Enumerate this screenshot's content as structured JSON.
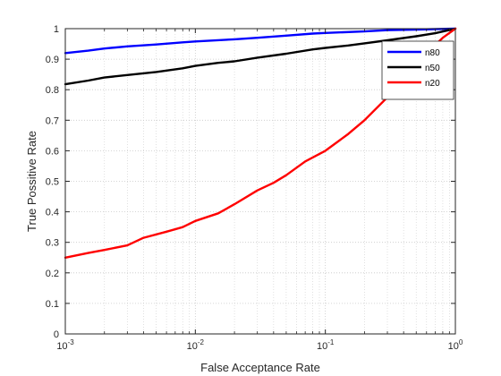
{
  "chart_data": {
    "type": "line",
    "title": "",
    "xlabel": "False Acceptance Rate",
    "ylabel": "True Possitive Rate",
    "xscale": "log",
    "xlim": [
      0.001,
      1
    ],
    "ylim": [
      0,
      1
    ],
    "xticks": [
      {
        "value": 0.001,
        "base": "10",
        "exp": "-3"
      },
      {
        "value": 0.01,
        "base": "10",
        "exp": "-2"
      },
      {
        "value": 0.1,
        "base": "10",
        "exp": "-1"
      },
      {
        "value": 1,
        "base": "10",
        "exp": "0"
      }
    ],
    "yticks": [
      {
        "value": 0,
        "label": "0"
      },
      {
        "value": 0.1,
        "label": "0.1"
      },
      {
        "value": 0.2,
        "label": "0.2"
      },
      {
        "value": 0.3,
        "label": "0.3"
      },
      {
        "value": 0.4,
        "label": "0.4"
      },
      {
        "value": 0.5,
        "label": "0.5"
      },
      {
        "value": 0.6,
        "label": "0.6"
      },
      {
        "value": 0.7,
        "label": "0.7"
      },
      {
        "value": 0.8,
        "label": "0.8"
      },
      {
        "value": 0.9,
        "label": "0.9"
      },
      {
        "value": 1,
        "label": "1"
      }
    ],
    "grid": true,
    "minor_grid": true,
    "legend_position": "top-right",
    "series": [
      {
        "name": "n80",
        "color": "#0000ff",
        "points": [
          [
            0.001,
            0.92
          ],
          [
            0.0015,
            0.928
          ],
          [
            0.002,
            0.935
          ],
          [
            0.003,
            0.942
          ],
          [
            0.005,
            0.948
          ],
          [
            0.008,
            0.955
          ],
          [
            0.01,
            0.958
          ],
          [
            0.02,
            0.965
          ],
          [
            0.03,
            0.97
          ],
          [
            0.05,
            0.977
          ],
          [
            0.08,
            0.984
          ],
          [
            0.1,
            0.986
          ],
          [
            0.2,
            0.991
          ],
          [
            0.3,
            0.995
          ],
          [
            0.5,
            0.997
          ],
          [
            1,
            1.0
          ]
        ]
      },
      {
        "name": "n50",
        "color": "#000000",
        "points": [
          [
            0.001,
            0.818
          ],
          [
            0.0015,
            0.83
          ],
          [
            0.002,
            0.84
          ],
          [
            0.003,
            0.848
          ],
          [
            0.005,
            0.858
          ],
          [
            0.008,
            0.87
          ],
          [
            0.01,
            0.878
          ],
          [
            0.015,
            0.888
          ],
          [
            0.02,
            0.893
          ],
          [
            0.03,
            0.905
          ],
          [
            0.05,
            0.918
          ],
          [
            0.08,
            0.932
          ],
          [
            0.1,
            0.937
          ],
          [
            0.15,
            0.945
          ],
          [
            0.2,
            0.952
          ],
          [
            0.3,
            0.962
          ],
          [
            0.5,
            0.975
          ],
          [
            0.7,
            0.985
          ],
          [
            1,
            1.0
          ]
        ]
      },
      {
        "name": "n20",
        "color": "#ff0000",
        "points": [
          [
            0.001,
            0.25
          ],
          [
            0.0015,
            0.265
          ],
          [
            0.002,
            0.275
          ],
          [
            0.003,
            0.29
          ],
          [
            0.004,
            0.315
          ],
          [
            0.006,
            0.335
          ],
          [
            0.008,
            0.35
          ],
          [
            0.01,
            0.37
          ],
          [
            0.015,
            0.395
          ],
          [
            0.02,
            0.425
          ],
          [
            0.03,
            0.47
          ],
          [
            0.04,
            0.495
          ],
          [
            0.05,
            0.52
          ],
          [
            0.07,
            0.565
          ],
          [
            0.1,
            0.6
          ],
          [
            0.15,
            0.655
          ],
          [
            0.2,
            0.7
          ],
          [
            0.3,
            0.775
          ],
          [
            0.4,
            0.83
          ],
          [
            0.5,
            0.885
          ],
          [
            0.6,
            0.92
          ],
          [
            0.8,
            0.97
          ],
          [
            1,
            1.0
          ]
        ]
      }
    ]
  }
}
